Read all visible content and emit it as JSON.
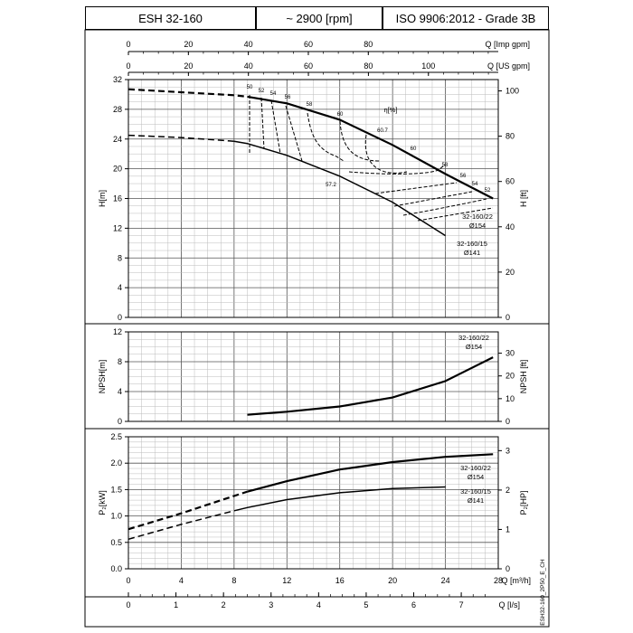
{
  "header": {
    "model": "ESH 32-160",
    "speed": "~ 2900 [rpm]",
    "standard": "ISO 9906:2012 - Grade 3B"
  },
  "drawing_code": "ESH32-160_2P50_E_CH",
  "chart_data": [
    {
      "type": "line",
      "name": "head",
      "ylabel": "H[m]",
      "ylabel_right": "H [ft]",
      "x_axis_top_imp": {
        "label": "Q [Imp gpm]",
        "ticks": [
          "0",
          "20",
          "40",
          "60",
          "80"
        ],
        "values": [
          0,
          20,
          40,
          60,
          80
        ]
      },
      "x_axis_top_us": {
        "label": "Q [US gpm]",
        "ticks": [
          "0",
          "20",
          "40",
          "60",
          "80",
          "100"
        ],
        "values": [
          0,
          20,
          40,
          60,
          80,
          100
        ]
      },
      "ylim": [
        0,
        32
      ],
      "yticks": [
        "0",
        "4",
        "8",
        "12",
        "16",
        "20",
        "24",
        "28",
        "32"
      ],
      "yticks_right": [
        "0",
        "20",
        "40",
        "60",
        "80",
        "100"
      ],
      "grid": true,
      "series": [
        {
          "name": "32-160/22",
          "label_line2": "Ø154",
          "x": [
            0,
            4,
            8,
            9,
            12,
            16,
            20,
            24,
            27.6
          ],
          "y": [
            30.7,
            30.3,
            29.9,
            29.7,
            28.8,
            26.6,
            23.2,
            19.3,
            16.0
          ],
          "dashed_until": 9
        },
        {
          "name": "32-160/15",
          "label_line2": "Ø141",
          "x": [
            0,
            4,
            8,
            9,
            12,
            16,
            20,
            24
          ],
          "y": [
            24.5,
            24.2,
            23.7,
            23.4,
            21.8,
            19.0,
            15.5,
            11.0
          ],
          "dashed_until": 8
        }
      ],
      "efficiency": {
        "label": "η[%]",
        "labels": [
          "50",
          "52",
          "54",
          "56",
          "58",
          "60",
          "60.7",
          "60",
          "58",
          "56",
          "54",
          "52",
          "57.2"
        ]
      }
    },
    {
      "type": "line",
      "name": "npsh",
      "ylabel": "NPSH[m]",
      "ylabel_right": "NPSH [ft]",
      "ylim": [
        0,
        12
      ],
      "yticks": [
        "0",
        "4",
        "8",
        "12"
      ],
      "yticks_right": [
        "0",
        "10",
        "20",
        "30"
      ],
      "grid": true,
      "series": [
        {
          "name": "32-160/22",
          "label_line2": "Ø154",
          "x": [
            9,
            12,
            16,
            20,
            24,
            27.6
          ],
          "y": [
            0.9,
            1.3,
            2.0,
            3.2,
            5.4,
            8.6
          ]
        }
      ]
    },
    {
      "type": "line",
      "name": "power",
      "ylabel": "P₂[kW]",
      "ylabel_right": "P₂[HP]",
      "ylim": [
        0,
        2.5
      ],
      "yticks": [
        "0.0",
        "0.5",
        "1.0",
        "1.5",
        "2.0",
        "2.5"
      ],
      "yticks_right": [
        "0",
        "1",
        "2",
        "3"
      ],
      "xlabel": "Q [m³/h]",
      "xticks": [
        "0",
        "4",
        "8",
        "12",
        "16",
        "20",
        "24",
        "28"
      ],
      "x2label": "Q [l/s]",
      "x2ticks": [
        "0",
        "1",
        "2",
        "3",
        "4",
        "5",
        "6",
        "7"
      ],
      "grid": true,
      "series": [
        {
          "name": "32-160/22",
          "label_line2": "Ø154",
          "x": [
            0,
            4,
            8,
            9,
            12,
            16,
            20,
            24,
            27.6
          ],
          "y": [
            0.75,
            1.05,
            1.38,
            1.46,
            1.66,
            1.88,
            2.02,
            2.12,
            2.17
          ],
          "dashed_until": 9
        },
        {
          "name": "32-160/15",
          "label_line2": "Ø141",
          "x": [
            0,
            4,
            8,
            9,
            12,
            16,
            20,
            24
          ],
          "y": [
            0.56,
            0.84,
            1.1,
            1.16,
            1.31,
            1.44,
            1.52,
            1.55
          ],
          "dashed_until": 8
        }
      ]
    }
  ]
}
